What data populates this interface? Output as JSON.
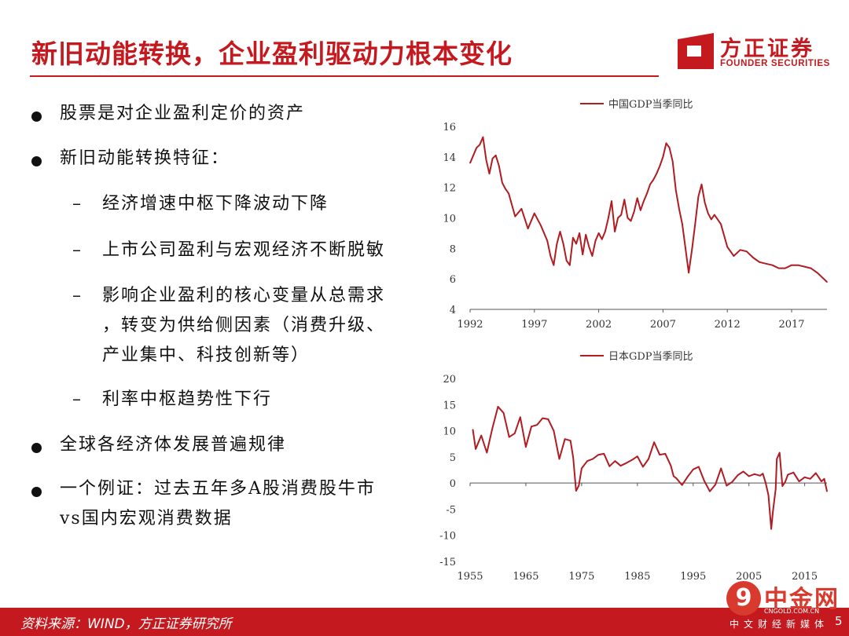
{
  "slide": {
    "title": "新旧动能转换，企业盈利驱动力根本变化",
    "logo_cn": "方正证券",
    "logo_en": "FOUNDER SECURITIES",
    "bullets": [
      {
        "level": 1,
        "lines": [
          "股票是对企业盈利定价的资产"
        ]
      },
      {
        "level": 1,
        "lines": [
          "新旧动能转换特征："
        ]
      },
      {
        "level": 2,
        "lines": [
          "经济增速中枢下降波动下降"
        ]
      },
      {
        "level": 2,
        "lines": [
          "上市公司盈利与宏观经济不断脱敏"
        ]
      },
      {
        "level": 2,
        "lines": [
          "影响企业盈利的核心变量从总需求",
          "，转变为供给侧因素（消费升级、",
          "产业集中、科技创新等）"
        ]
      },
      {
        "level": 2,
        "lines": [
          "利率中枢趋势性下行"
        ]
      },
      {
        "level": 1,
        "lines": [
          "全球各经济体发展普遍规律"
        ]
      },
      {
        "level": 1,
        "lines": [
          "一个例证：过去五年多A股消费股牛市",
          "vs国内宏观消费数据"
        ]
      }
    ],
    "footer": "资料来源：WIND，方正证券研究所",
    "page_number": "5",
    "watermark": {
      "name": "中金网",
      "url": "CNGOLD.COM.CN",
      "subtitle": "中文财经新媒体"
    },
    "accent_color": "#c41a1f"
  },
  "chart_data": [
    {
      "type": "line",
      "legend": "中国GDP当季同比",
      "legend_position": "top",
      "grid": false,
      "xlim": [
        1992,
        2019.75
      ],
      "ylim": [
        4,
        16
      ],
      "x_ticks": [
        "1992",
        "1997",
        "2002",
        "2007",
        "2012",
        "2017"
      ],
      "y_ticks": [
        "16",
        "14",
        "12",
        "10",
        "8",
        "6",
        "4"
      ],
      "series": [
        {
          "color": "#b01c22",
          "x": [
            1992.0,
            1992.5,
            1992.75,
            1993.0,
            1993.25,
            1993.5,
            1993.75,
            1994.0,
            1994.25,
            1994.5,
            1994.75,
            1995.0,
            1995.5,
            1996.0,
            1996.5,
            1997.0,
            1997.5,
            1998.0,
            1998.25,
            1998.5,
            1998.75,
            1999.0,
            1999.25,
            1999.5,
            1999.75,
            2000.0,
            2000.25,
            2000.5,
            2000.75,
            2001.0,
            2001.25,
            2001.5,
            2001.75,
            2002.0,
            2002.25,
            2002.5,
            2002.75,
            2003.0,
            2003.25,
            2003.5,
            2003.75,
            2004.0,
            2004.25,
            2004.5,
            2004.75,
            2005.0,
            2005.25,
            2005.5,
            2005.75,
            2006.0,
            2006.25,
            2006.5,
            2006.75,
            2007.0,
            2007.25,
            2007.5,
            2007.75,
            2008.0,
            2008.25,
            2008.5,
            2008.75,
            2009.0,
            2009.25,
            2009.5,
            2009.75,
            2010.0,
            2010.25,
            2010.5,
            2010.75,
            2011.0,
            2011.5,
            2012.0,
            2012.5,
            2013.0,
            2013.5,
            2014.0,
            2014.5,
            2015.0,
            2015.5,
            2016.0,
            2016.5,
            2017.0,
            2017.5,
            2018.0,
            2018.5,
            2019.0,
            2019.5,
            2019.75
          ],
          "values": [
            13.6,
            14.6,
            14.8,
            15.3,
            13.8,
            12.9,
            13.9,
            14.1,
            13.4,
            12.3,
            11.9,
            11.6,
            10.1,
            10.6,
            9.3,
            10.3,
            9.5,
            8.5,
            7.5,
            6.9,
            8.3,
            9.1,
            8.3,
            7.2,
            6.9,
            8.7,
            8.3,
            9.0,
            7.6,
            8.9,
            8.1,
            7.5,
            8.5,
            9.0,
            8.6,
            9.1,
            10.0,
            11.1,
            9.1,
            10.0,
            10.2,
            11.2,
            10.0,
            9.8,
            10.4,
            11.3,
            10.5,
            11.1,
            11.6,
            12.2,
            12.5,
            12.9,
            13.4,
            14.0,
            14.9,
            14.6,
            13.7,
            11.8,
            10.6,
            9.6,
            8.0,
            6.4,
            7.9,
            9.6,
            11.4,
            12.2,
            11.0,
            10.3,
            9.9,
            10.2,
            9.6,
            8.1,
            7.5,
            7.9,
            7.8,
            7.4,
            7.1,
            7.0,
            6.9,
            6.7,
            6.7,
            6.9,
            6.9,
            6.8,
            6.7,
            6.4,
            6.0,
            5.8
          ]
        }
      ]
    },
    {
      "type": "line",
      "legend": "日本GDP当季同比",
      "legend_position": "top",
      "grid": false,
      "xlim": [
        1955,
        2019
      ],
      "ylim": [
        -15,
        20
      ],
      "x_ticks": [
        "1955",
        "1965",
        "1975",
        "1985",
        "1995",
        "2005",
        "2015"
      ],
      "y_ticks": [
        "20",
        "15",
        "10",
        "5",
        "0",
        "-5",
        "-10",
        "-15"
      ],
      "series": [
        {
          "color": "#b01c22",
          "x": [
            1955.5,
            1956,
            1957,
            1958,
            1959,
            1960,
            1961,
            1962,
            1963,
            1964,
            1965,
            1966,
            1967,
            1968,
            1969,
            1970,
            1971,
            1972,
            1973,
            1973.5,
            1974,
            1974.5,
            1975,
            1976,
            1977,
            1978,
            1979,
            1980,
            1981,
            1982,
            1983,
            1984,
            1985,
            1986,
            1987,
            1988,
            1989,
            1990,
            1991,
            1991.5,
            1992,
            1993,
            1994,
            1995,
            1996,
            1997,
            1998,
            1999,
            2000,
            2001,
            2002,
            2003,
            2004,
            2005,
            2006,
            2007,
            2007.5,
            2008,
            2008.5,
            2009,
            2009.3,
            2009.8,
            2010,
            2010.5,
            2011,
            2011.5,
            2012,
            2013,
            2014,
            2015,
            2016,
            2017,
            2017.5,
            2018,
            2018.5,
            2019
          ],
          "values": [
            10.2,
            6.5,
            9.1,
            5.8,
            10.5,
            14.6,
            13.4,
            8.8,
            9.5,
            12.6,
            6.9,
            10.8,
            11.1,
            12.4,
            12.2,
            10.0,
            4.6,
            8.4,
            8.1,
            4.8,
            -1.5,
            -0.5,
            2.8,
            4.2,
            4.6,
            5.4,
            5.6,
            3.2,
            4.2,
            3.3,
            3.8,
            4.4,
            5.1,
            3.1,
            4.6,
            7.8,
            5.4,
            5.6,
            3.3,
            1.3,
            0.9,
            -0.4,
            1.2,
            2.6,
            3.1,
            0.4,
            -1.6,
            -0.3,
            2.8,
            -0.5,
            0.2,
            1.5,
            2.2,
            1.3,
            1.7,
            1.4,
            1.8,
            0.0,
            -2.3,
            -8.8,
            -5.5,
            -1.2,
            4.6,
            5.8,
            -0.6,
            0.2,
            1.6,
            2.0,
            0.3,
            1.1,
            0.8,
            1.9,
            1.1,
            0.3,
            0.8,
            -1.6
          ]
        }
      ]
    }
  ]
}
